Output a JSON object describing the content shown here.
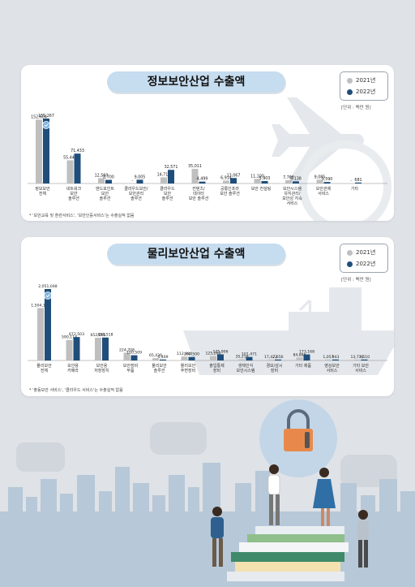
{
  "colors": {
    "y2021": "#bfbfbf",
    "y2022": "#1f4e7a",
    "pill": "#c6dcef",
    "bg": "#dfe2e6"
  },
  "legend": {
    "y2021": "2021년",
    "y2022": "2022년"
  },
  "unit": "[단위 : 백만 원]",
  "chart_data": [
    {
      "type": "bar",
      "title": "정보보안산업 수출액",
      "note": "* '보안교육 및 훈련서비스', '보안인증서비스'는 수출실적 없음",
      "categories": [
        [
          "정보보안",
          "전체"
        ],
        [
          "네트워크",
          "보안",
          "솔루션"
        ],
        [
          "엔드포인트",
          "보안",
          "솔루션"
        ],
        [
          "클라우드보안/",
          "보안관리",
          "솔루션"
        ],
        [
          "클라우드",
          "보안",
          "솔루션"
        ],
        [
          "컨텐츠/",
          "데이터",
          "보안 솔루션"
        ],
        [
          "공통인프라",
          "보안 솔루션"
        ],
        [
          "보안 컨설팅"
        ],
        [
          "보안시스템",
          "유지관리/",
          "보안성 지속",
          "서비스"
        ],
        [
          "보안관제",
          "서비스"
        ],
        [
          "기타"
        ]
      ],
      "series": [
        {
          "name": "2021년",
          "values": [
            152604,
            55440,
            12560,
            null,
            14715,
            35011,
            6914,
            11100,
            7768,
            9085,
            null
          ],
          "labels": [
            "152,604",
            "55,440",
            "12,560",
            "-",
            "14,715",
            "35,011",
            "6,914",
            "11,100",
            "7,768",
            "9,085",
            "-"
          ]
        },
        {
          "name": "2022년",
          "values": [
            155267,
            71433,
            8700,
            9005,
            32571,
            4499,
            13067,
            5903,
            5138,
            3590,
            681
          ],
          "labels": [
            "155,267",
            "71,433",
            "8,700",
            "9,005",
            "32,571",
            "4,499",
            "13,067",
            "5,903",
            "5,138",
            "3,590",
            "681"
          ]
        }
      ]
    },
    {
      "type": "bar",
      "title": "물리보안산업 수출액",
      "note": "* '출동보안 서비스', '클라우드 서비스'는 수출실적 없음",
      "categories": [
        [
          "물리보안",
          "전체"
        ],
        [
          "보안용",
          "카메라"
        ],
        [
          "보안용",
          "저장장치"
        ],
        [
          "보안장비",
          "부품"
        ],
        [
          "물리보안",
          "솔루션"
        ],
        [
          "물리보안",
          "주변장비"
        ],
        [
          "출입통제",
          "장비"
        ],
        [
          "생체인식",
          "보안시스템"
        ],
        [
          "경보/감시",
          "장비"
        ],
        [
          "기타 제품"
        ],
        [
          "영상보안",
          "서비스"
        ],
        [
          "기타 보안",
          "서비스"
        ]
      ],
      "series": [
        {
          "name": "2021년",
          "values": [
            1504176,
            590114,
            652261,
            224708,
            65436,
            112984,
            125260,
            35216,
            17422,
            84886,
            1057,
            13770
          ],
          "labels": [
            "1,504,176",
            "590,114",
            "652,261",
            "224,708",
            "65,436",
            "112,984",
            "125,260",
            "35,216",
            "17,422",
            "84,886",
            "1,057",
            "13,770"
          ]
        },
        {
          "name": "2022년",
          "values": [
            2051048,
            672503,
            658518,
            150509,
            4469,
            102500,
            175906,
            101471,
            7656,
            173168,
            943,
            3510
          ],
          "labels": [
            "2,051,048",
            "672,503",
            "658,518",
            "150,509",
            "4,469",
            "102,500",
            "175,906",
            "101,471",
            "7,656",
            "173,168",
            "943",
            "3,510"
          ]
        }
      ]
    }
  ]
}
